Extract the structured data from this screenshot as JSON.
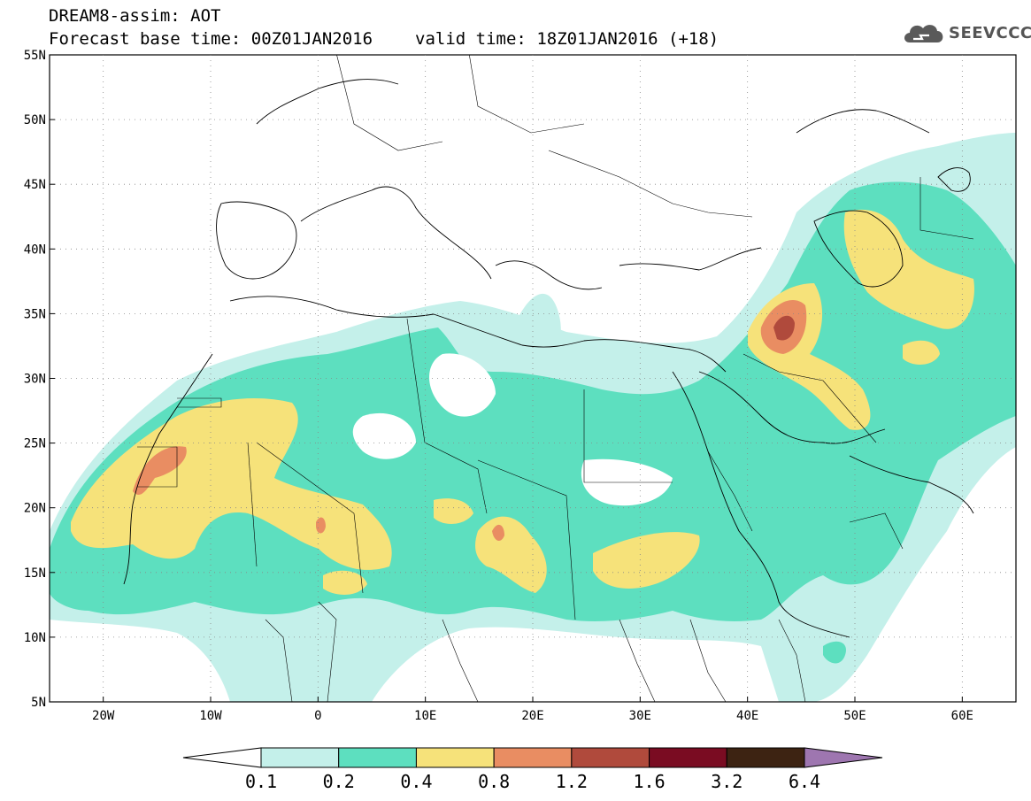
{
  "title": {
    "line1": "DREAM8-assim: AOT",
    "base_time": "Forecast base time: 00Z01JAN2016",
    "valid_time": "valid time: 18Z01JAN2016 (+18)"
  },
  "logo": {
    "text": "SEEVCCC",
    "icon": "cloud-icon"
  },
  "axes": {
    "lat_labels": [
      "55N",
      "50N",
      "45N",
      "40N",
      "35N",
      "30N",
      "25N",
      "20N",
      "15N",
      "10N",
      "5N"
    ],
    "lon_labels": [
      "20W",
      "10W",
      "0",
      "10E",
      "20E",
      "30E",
      "40E",
      "50E",
      "60E"
    ]
  },
  "colorbar": {
    "labels": [
      "0.1",
      "0.2",
      "0.4",
      "0.8",
      "1.2",
      "1.6",
      "3.2",
      "6.4"
    ],
    "colors": [
      "#ffffff",
      "#c4f0ea",
      "#5ddfbf",
      "#f6e27a",
      "#e98d62",
      "#b04a3c",
      "#7a0c22",
      "#3d2312",
      "#9e76b0"
    ]
  },
  "colors": {
    "level_01": "#c4f0ea",
    "level_02": "#5ddfbf",
    "level_04": "#f6e27a",
    "level_08": "#e98d62",
    "level_12": "#b04a3c"
  }
}
